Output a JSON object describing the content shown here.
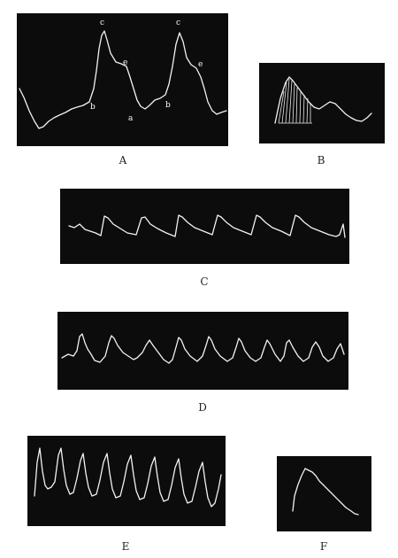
{
  "figure": {
    "panels": [
      {
        "id": "A",
        "caption": "A",
        "point_labels": [
          "c",
          "c",
          "e",
          "e",
          "b",
          "b",
          "a"
        ]
      },
      {
        "id": "B",
        "caption": "B"
      },
      {
        "id": "C",
        "caption": "C"
      },
      {
        "id": "D",
        "caption": "D"
      },
      {
        "id": "E",
        "caption": "E"
      },
      {
        "id": "F",
        "caption": "F"
      }
    ]
  },
  "colors": {
    "panel_bg": "#0c0c0c",
    "trace": "#f2f2f2",
    "page_bg": "#ffffff"
  }
}
